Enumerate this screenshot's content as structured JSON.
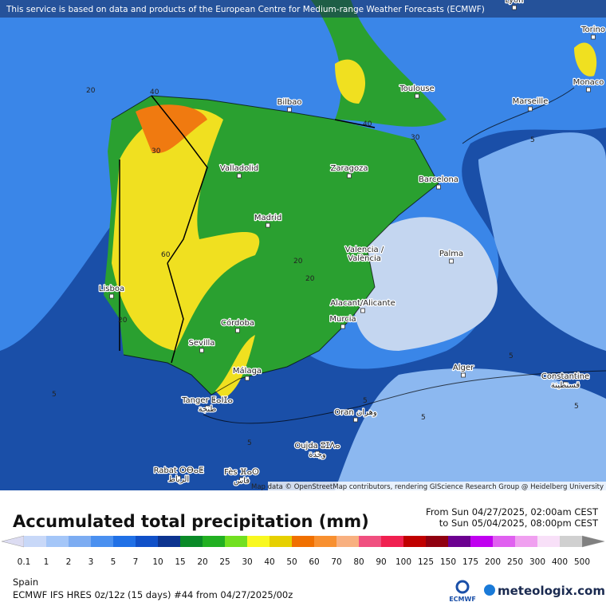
{
  "header": {
    "notice": "This service is based on data and products of the European Centre for Medium-range Weather Forecasts (ECMWF)"
  },
  "map": {
    "attribution": "Map data © OpenStreetMap contributors, rendering GIScience Research Group @ Heidelberg University",
    "cities": [
      {
        "name": "Lyon"
      },
      {
        "name": "Torino"
      },
      {
        "name": "Monaco"
      },
      {
        "name": "Bilbao"
      },
      {
        "name": "Toulouse"
      },
      {
        "name": "Marseille"
      },
      {
        "name": "Valladolid"
      },
      {
        "name": "Zaragoza"
      },
      {
        "name": "Barcelona"
      },
      {
        "name": "Madrid"
      },
      {
        "name": "Valencia /",
        "name2": "València"
      },
      {
        "name": "Palma"
      },
      {
        "name": "Lisboa"
      },
      {
        "name": "Alacant/Alicante"
      },
      {
        "name": "Murcia"
      },
      {
        "name": "Córdoba"
      },
      {
        "name": "Sevilla"
      },
      {
        "name": "Málaga"
      },
      {
        "name": "Alger"
      },
      {
        "name": "Constantine",
        "name2": "قسنطينة"
      },
      {
        "name": "Tanger ⵟⴰⵏⵊⴰ",
        "name2": "طنجة"
      },
      {
        "name": "Oran وهران"
      },
      {
        "name": "Oujda ⵓⵊⴷⴰ",
        "name2": "وجدة"
      },
      {
        "name": "Rabat ⵔⴱⴰⵟ",
        "name2": "الرباط"
      },
      {
        "name": "Fès ⴼⴰⵙ",
        "name2": "فاس"
      }
    ],
    "contour_labels": [
      "20",
      "40",
      "30",
      "40",
      "30",
      "5",
      "5",
      "5",
      "60",
      "20",
      "20",
      "20",
      "5",
      "5",
      "5",
      "5"
    ]
  },
  "footer": {
    "title": "Accumulated total precipitation (mm)",
    "from": "From Sun 04/27/2025, 02:00am CEST",
    "to": "to Sun 05/04/2025, 08:00pm CEST",
    "legend": {
      "labels": [
        "0.1",
        "1",
        "2",
        "3",
        "5",
        "7",
        "10",
        "15",
        "20",
        "25",
        "30",
        "40",
        "50",
        "60",
        "70",
        "80",
        "90",
        "100",
        "125",
        "150",
        "175",
        "200",
        "250",
        "300",
        "400",
        "500"
      ],
      "colors": [
        "#dcdcf2",
        "#c8d8f8",
        "#a4c6f8",
        "#7cacf2",
        "#4a90f0",
        "#2070e6",
        "#1050c8",
        "#0c3490",
        "#0a8a28",
        "#22b022",
        "#72e020",
        "#f8f820",
        "#e6d000",
        "#f07000",
        "#f89030",
        "#f8b080",
        "#f05080",
        "#f02050",
        "#c00000",
        "#900010",
        "#6c0090",
        "#c000f0",
        "#e060f0",
        "#f0a0f0",
        "#f8e0f8",
        "#d0d0d0",
        "#808080"
      ]
    },
    "region": "Spain",
    "model": "ECMWF IFS HRES 0z/12z (15 days) #44 from  04/27/2025/00z",
    "ecmwf_logo": "ECMWF",
    "brand": "meteologix.com"
  }
}
